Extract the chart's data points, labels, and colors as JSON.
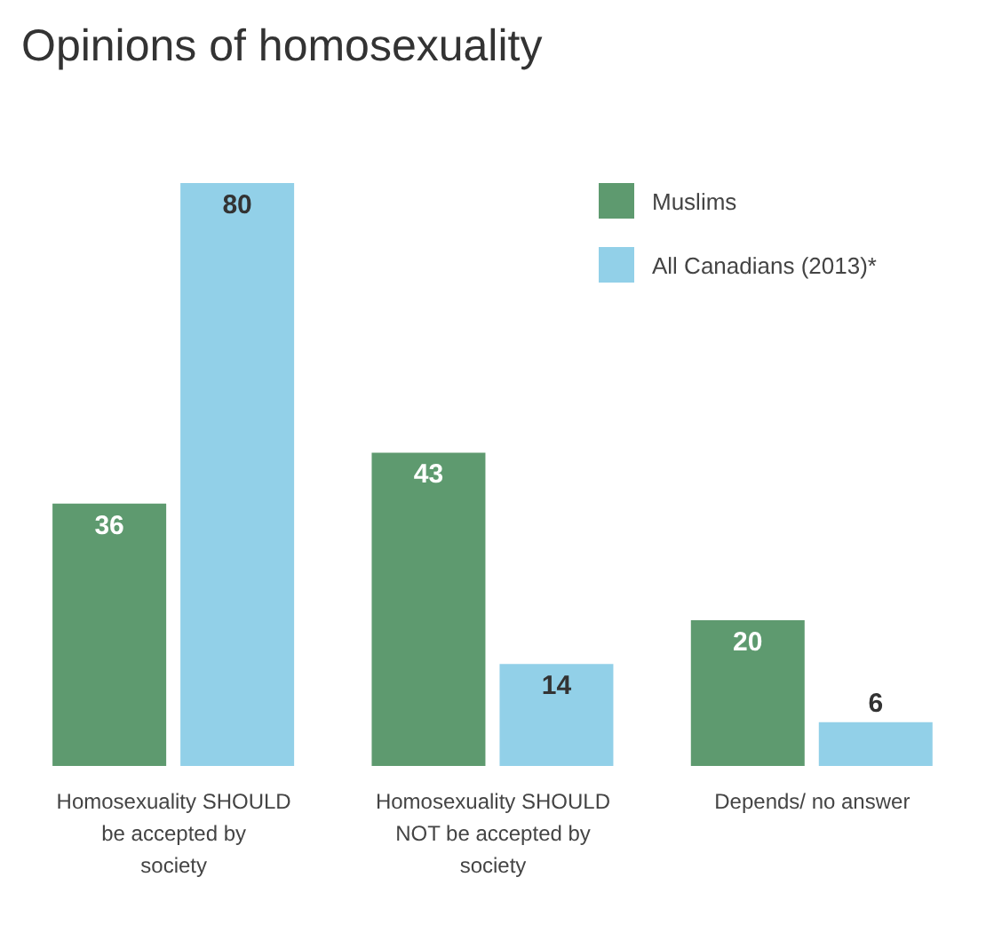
{
  "chart_data": {
    "type": "bar",
    "title": "Opinions of homosexuality",
    "categories": [
      "Homosexuality SHOULD be accepted by society",
      "Homosexuality SHOULD NOT be accepted by society",
      "Depends/ no answer"
    ],
    "series": [
      {
        "name": "Muslims",
        "color": "#5e9a6f",
        "values": [
          36,
          43,
          20
        ]
      },
      {
        "name": "All Canadians (2013)*",
        "color": "#92d0e8",
        "values": [
          80,
          14,
          6
        ]
      }
    ],
    "data_labels": true,
    "legend": "top right",
    "grid": false
  }
}
